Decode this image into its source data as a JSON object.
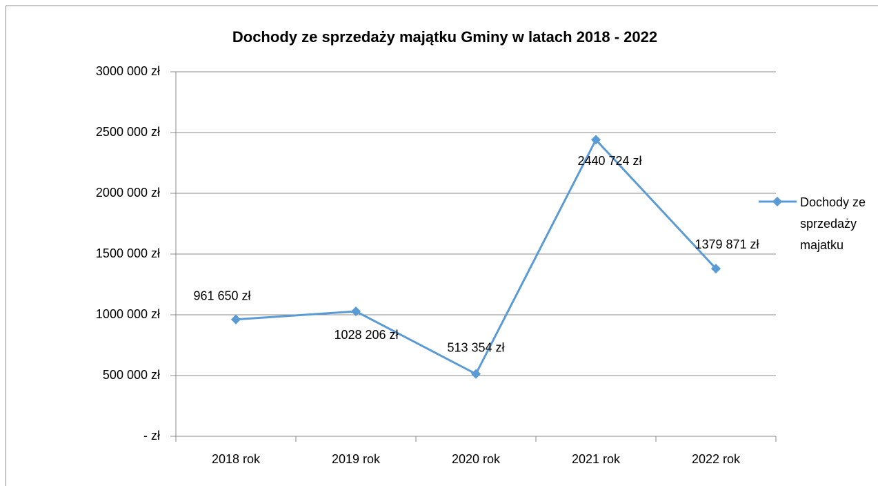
{
  "chart_data": {
    "type": "line",
    "title": "Dochody ze sprzedaży majątku Gminy w latach 2018 - 2022",
    "categories": [
      "2018 rok",
      "2019 rok",
      "2020 rok",
      "2021 rok",
      "2022 rok"
    ],
    "series": [
      {
        "name": "Dochody ze sprzedaży majatku",
        "color": "#5b9bd5",
        "values": [
          961650,
          1028206,
          513354,
          2440724,
          1379871
        ],
        "value_labels": [
          "961 650 zł",
          "1028 206 zł",
          "513 354 zł",
          "2440 724 zł",
          "1379 871 zł"
        ]
      }
    ],
    "ylim": [
      0,
      3000000
    ],
    "yticks": [
      {
        "value": 0,
        "label": "-   zł"
      },
      {
        "value": 500000,
        "label": "500 000 zł"
      },
      {
        "value": 1000000,
        "label": "1000 000 zł"
      },
      {
        "value": 1500000,
        "label": "1500 000 zł"
      },
      {
        "value": 2000000,
        "label": "2000 000 zł"
      },
      {
        "value": 2500000,
        "label": "2500 000 zł"
      },
      {
        "value": 3000000,
        "label": "3000 000 zł"
      }
    ],
    "grid": true,
    "legend": "right"
  }
}
